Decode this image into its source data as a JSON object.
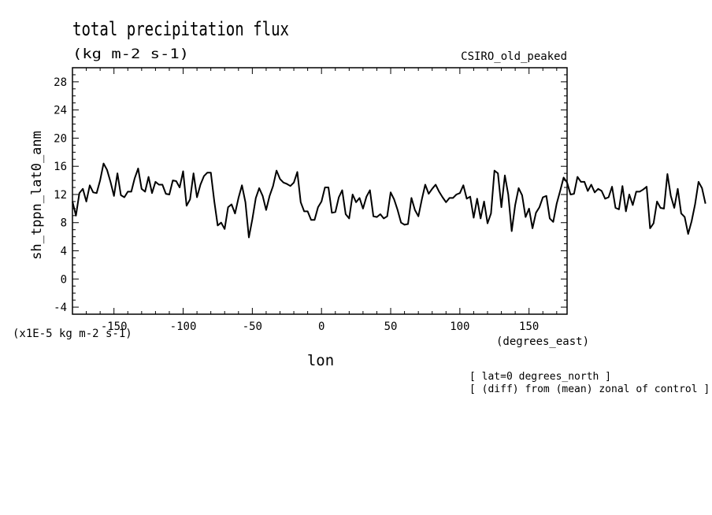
{
  "header": {
    "title": "total precipitation flux",
    "units": "(kg m-2 s-1)",
    "model": "CSIRO_old_peaked"
  },
  "footer": {
    "note_lat": "[ lat=0 degrees_north ]",
    "note_diff": "[ (diff) from (mean) zonal of control ]"
  },
  "chart_data": {
    "type": "line",
    "title": "total precipitation flux",
    "subtitle": "(kg m-2 s-1)",
    "xlabel": "lon",
    "x_units": "(degrees_east)",
    "ylabel": "sh_tppn_lat0_anm",
    "y_scale_note": "(x1E-5 kg m-2 s-1)",
    "xlim": [
      -180,
      177.5
    ],
    "ylim": [
      -5,
      30
    ],
    "x_ticks": [
      -150,
      -100,
      -50,
      0,
      50,
      100,
      150
    ],
    "x_tick_labels": [
      "-150",
      "-100",
      "-50",
      "0",
      "50",
      "100",
      "150"
    ],
    "y_ticks": [
      -4,
      0,
      4,
      8,
      12,
      16,
      20,
      24,
      28
    ],
    "y_tick_labels": [
      "-4",
      "0",
      "4",
      "8",
      "12",
      "16",
      "20",
      "24",
      "28"
    ],
    "grid": false,
    "line_color": "#000000",
    "series": [
      {
        "x_start": -180,
        "x_step": 2.5,
        "values": [
          11,
          9,
          12.2,
          12.8,
          11,
          13.3,
          12.3,
          12.2,
          14,
          16.4,
          15.5,
          13.8,
          11.8,
          15,
          11.9,
          11.6,
          12.4,
          12.4,
          14.3,
          15.7,
          12.8,
          12.4,
          14.5,
          12.2,
          13.8,
          13.4,
          13.4,
          12.1,
          12,
          14,
          13.9,
          13,
          15.3,
          10.4,
          11.3,
          15,
          11.6,
          13.4,
          14.6,
          15.1,
          15.1,
          11,
          7.6,
          8,
          7.1,
          10.2,
          10.6,
          9.3,
          11.5,
          13.3,
          10.9,
          5.9,
          8.5,
          11.5,
          12.9,
          11.8,
          9.8,
          11.8,
          13.2,
          15.4,
          14.2,
          13.7,
          13.5,
          13.2,
          13.7,
          15.2,
          10.9,
          9.6,
          9.6,
          8.4,
          8.4,
          10.2,
          11,
          13,
          13,
          9.4,
          9.5,
          11.6,
          12.6,
          9.2,
          8.6,
          12,
          10.9,
          11.5,
          10,
          11.7,
          12.6,
          8.9,
          8.8,
          9.2,
          8.6,
          8.9,
          12.3,
          11.3,
          9.8,
          8,
          7.7,
          7.8,
          11.5,
          9.8,
          8.9,
          11.3,
          13.4,
          12.1,
          12.8,
          13.4,
          12.4,
          11.6,
          10.9,
          11.5,
          11.5,
          12,
          12.2,
          13.3,
          11.4,
          11.7,
          8.7,
          11.4,
          8.6,
          11,
          7.9,
          9.3,
          15.4,
          15,
          10.2,
          14.7,
          12,
          6.8,
          10.5,
          12.9,
          11.9,
          8.8,
          10,
          7.2,
          9.4,
          10.2,
          11.6,
          11.8,
          8.6,
          8.1,
          10.7,
          12.5,
          14.4,
          13.7,
          12,
          12.1,
          14.5,
          13.8,
          13.8,
          12.5,
          13.4,
          12.3,
          12.8,
          12.5,
          11.4,
          11.6,
          13.1,
          10.1,
          9.9,
          13.2,
          9.6,
          12,
          10.5,
          12.4,
          12.4,
          12.7,
          13.1,
          7.2,
          7.9,
          11,
          10.1,
          10,
          14.9,
          11.8,
          10.1,
          12.8,
          9.3,
          8.8,
          6.4,
          8.2,
          10.6,
          13.8,
          12.9,
          10.7
        ]
      }
    ]
  }
}
